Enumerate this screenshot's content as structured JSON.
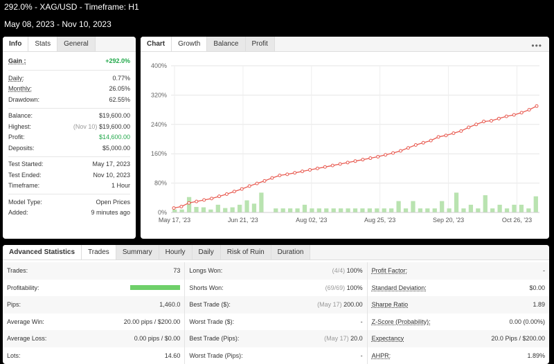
{
  "header": {
    "title": "292.0% - XAG/USD - Timeframe: H1",
    "subtitle": "May 08, 2023 - Nov 10, 2023"
  },
  "left_panel": {
    "tabs": [
      "Info",
      "Stats",
      "General"
    ],
    "gain": {
      "label": "Gain :",
      "value": "+292.0%"
    },
    "group1": [
      {
        "label": "Daily:",
        "value": "0.77%"
      },
      {
        "label": "Monthly:",
        "value": "26.05%"
      },
      {
        "label": "Drawdown:",
        "value": "62.55%"
      }
    ],
    "group2": [
      {
        "label": "Balance:",
        "value": "$19,600.00",
        "note": ""
      },
      {
        "label": "Highest:",
        "value": "$19,600.00",
        "note": "(Nov 10)"
      },
      {
        "label": "Profit:",
        "value": "$14,600.00",
        "note": ""
      },
      {
        "label": "Deposits:",
        "value": "$5,000.00",
        "note": ""
      }
    ],
    "group3": [
      {
        "label": "Test Started:",
        "value": "May 17, 2023"
      },
      {
        "label": "Test Ended:",
        "value": "Nov 10, 2023"
      },
      {
        "label": "Timeframe:",
        "value": "1 Hour"
      }
    ],
    "group4": [
      {
        "label": "Model Type:",
        "value": "Open Prices"
      },
      {
        "label": "Added:",
        "value": "9 minutes ago"
      }
    ]
  },
  "chart_panel": {
    "tabs": [
      "Chart",
      "Growth",
      "Balance",
      "Profit"
    ],
    "menu": "•••"
  },
  "chart_data": {
    "type": "line",
    "y_ticks": [
      "0%",
      "80%",
      "160%",
      "240%",
      "320%",
      "400%"
    ],
    "x_ticks": [
      "May 17, '23",
      "Jun 21, '23",
      "Aug 02, '23",
      "Aug 25, '23",
      "Sep 20, '23",
      "Oct 26, '23"
    ],
    "ylim": [
      0,
      400
    ],
    "colors": {
      "line": "#e8594f",
      "bars": "#b9e3b0"
    },
    "series": [
      {
        "values": [
          12,
          16,
          26,
          30,
          34,
          38,
          44,
          50,
          57,
          64,
          72,
          79,
          86,
          94,
          101,
          104,
          108,
          112,
          116,
          120,
          124,
          128,
          132,
          136,
          140,
          144,
          148,
          152,
          157,
          162,
          168,
          176,
          184,
          190,
          196,
          206,
          210,
          216,
          222,
          232,
          240,
          248,
          250,
          256,
          262,
          266,
          272,
          280,
          290
        ]
      }
    ],
    "bars": [
      8,
      8,
      42,
      15,
      14,
      8,
      21,
      12,
      14,
      21,
      33,
      24,
      54,
      0,
      11,
      11,
      11,
      11,
      21,
      11,
      11,
      11,
      11,
      11,
      11,
      11,
      11,
      11,
      11,
      11,
      11,
      31,
      11,
      31,
      11,
      11,
      11,
      31,
      11,
      54,
      11,
      21,
      11,
      47,
      11,
      21,
      11,
      21,
      21,
      11,
      44
    ]
  },
  "adv_panel": {
    "tabs": [
      "Advanced Statistics",
      "Trades",
      "Summary",
      "Hourly",
      "Daily",
      "Risk of Ruin",
      "Duration"
    ],
    "rows": [
      [
        {
          "label": "Trades:",
          "value": "73",
          "note": ""
        },
        {
          "label": "Longs Won:",
          "value": "100%",
          "note": "(4/4)"
        },
        {
          "label": "Profit Factor:",
          "value": "-",
          "note": ""
        }
      ],
      [
        {
          "label": "Profitability:",
          "value": "",
          "note": ""
        },
        {
          "label": "Shorts Won:",
          "value": "100%",
          "note": "(69/69)"
        },
        {
          "label": "Standard Deviation:",
          "value": "$0.00",
          "note": ""
        }
      ],
      [
        {
          "label": "Pips:",
          "value": "1,460.0",
          "note": ""
        },
        {
          "label": "Best Trade ($):",
          "value": "200.00",
          "note": "(May 17)"
        },
        {
          "label": "Sharpe Ratio",
          "value": "1.89",
          "note": ""
        }
      ],
      [
        {
          "label": "Average Win:",
          "value": "20.00 pips / $200.00",
          "note": ""
        },
        {
          "label": "Worst Trade ($):",
          "value": "-",
          "note": ""
        },
        {
          "label": "Z-Score (Probability):",
          "value": "0.00 (0.00%)",
          "note": ""
        }
      ],
      [
        {
          "label": "Average Loss:",
          "value": "0.00 pips / $0.00",
          "note": ""
        },
        {
          "label": "Best Trade (Pips):",
          "value": "20.0",
          "note": "(May 17)"
        },
        {
          "label": "Expectancy",
          "value": "20.0 Pips / $200.00",
          "note": ""
        }
      ],
      [
        {
          "label": "Lots:",
          "value": "14.60",
          "note": ""
        },
        {
          "label": "Worst Trade (Pips):",
          "value": "-",
          "note": ""
        },
        {
          "label": "AHPR:",
          "value": "1.89%",
          "note": ""
        }
      ]
    ]
  }
}
